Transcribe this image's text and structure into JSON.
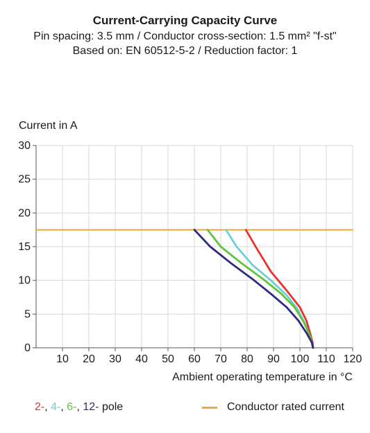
{
  "header": {
    "title": "Current-Carrying Capacity Curve",
    "subtitle1": "Pin spacing: 3.5 mm / Conductor cross-section: 1.5 mm² \"f-st\"",
    "subtitle2": "Based on: EN 60512-5-2 / Reduction factor: 1"
  },
  "chart_data": {
    "type": "line",
    "xlabel": "Ambient operating temperature in °C",
    "ylabel": "Current in A",
    "xlim": [
      0,
      120
    ],
    "ylim": [
      0,
      30
    ],
    "xticks": [
      10,
      20,
      30,
      40,
      50,
      60,
      70,
      80,
      90,
      100,
      110,
      120
    ],
    "yticks": [
      0,
      5,
      10,
      15,
      20,
      25,
      30
    ],
    "grid": true,
    "series": [
      {
        "name": "2-",
        "color": "#e8312a",
        "x": [
          79.5,
          84,
          89,
          95,
          100,
          102.5,
          104,
          104.8,
          105
        ],
        "y": [
          17.5,
          14.5,
          11.3,
          8.5,
          6,
          4,
          2,
          0.8,
          0
        ]
      },
      {
        "name": "4-",
        "color": "#6ccfd6",
        "x": [
          72,
          76,
          82,
          89,
          95,
          99,
          102,
          104,
          105
        ],
        "y": [
          17.5,
          15,
          12.3,
          10,
          7.8,
          5.8,
          3.5,
          1.5,
          0
        ]
      },
      {
        "name": "6-",
        "color": "#5ec43a",
        "x": [
          65,
          70,
          78,
          86,
          93,
          98,
          101.5,
          104,
          105
        ],
        "y": [
          17.5,
          15,
          12.5,
          10.2,
          8,
          6,
          3.8,
          1.6,
          0
        ]
      },
      {
        "name": "12-",
        "color": "#2d2a7e",
        "x": [
          60,
          66,
          74,
          82,
          89,
          95,
          99.5,
          102.5,
          104.5,
          105
        ],
        "y": [
          17.5,
          15,
          12.5,
          10.2,
          8,
          6,
          4,
          2.2,
          0.8,
          0
        ]
      },
      {
        "name": "Conductor rated current",
        "color": "#f4a53c",
        "x": [
          0,
          120
        ],
        "y": [
          17.5,
          17.5
        ]
      }
    ]
  },
  "legend": {
    "pole_items": [
      {
        "label": "2-",
        "color": "#e8312a"
      },
      {
        "label": "4-",
        "color": "#6ccfd6"
      },
      {
        "label": "6-",
        "color": "#5ec43a"
      },
      {
        "label": "12-",
        "color": "#2d2a7e"
      }
    ],
    "pole_suffix": " pole",
    "rated_label": "Conductor rated current",
    "rated_color": "#f4a53c"
  }
}
